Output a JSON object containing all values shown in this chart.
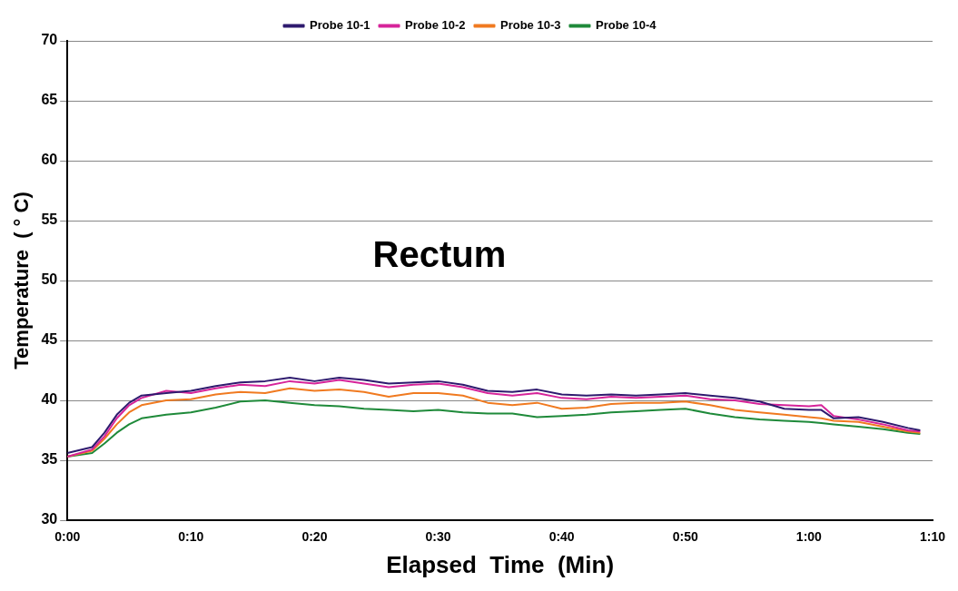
{
  "chart_data": {
    "type": "line",
    "title": null,
    "xlabel": "Elapsed  Time  (Min)",
    "ylabel": "Temperature  ( ° C)",
    "annotations": [
      "Rectum"
    ],
    "x": [
      0,
      2,
      3,
      4,
      5,
      6,
      8,
      10,
      12,
      14,
      16,
      18,
      20,
      22,
      24,
      26,
      28,
      30,
      32,
      34,
      36,
      38,
      40,
      42,
      44,
      46,
      48,
      50,
      52,
      54,
      56,
      58,
      60,
      61,
      62,
      64,
      66,
      68,
      69
    ],
    "series": [
      {
        "name": "Probe 10-1",
        "color": "#2e1a6e",
        "values": [
          35.6,
          36.1,
          37.3,
          38.8,
          39.8,
          40.4,
          40.6,
          40.8,
          41.2,
          41.5,
          41.6,
          41.9,
          41.6,
          41.9,
          41.7,
          41.4,
          41.5,
          41.6,
          41.3,
          40.8,
          40.7,
          40.9,
          40.5,
          40.4,
          40.5,
          40.4,
          40.5,
          40.6,
          40.4,
          40.2,
          39.9,
          39.3,
          39.2,
          39.2,
          38.5,
          38.6,
          38.2,
          37.7,
          37.5
        ]
      },
      {
        "name": "Probe 10-2",
        "color": "#d6249a",
        "values": [
          35.3,
          35.9,
          37.0,
          38.5,
          39.6,
          40.2,
          40.8,
          40.6,
          41.0,
          41.3,
          41.2,
          41.6,
          41.4,
          41.7,
          41.4,
          41.1,
          41.3,
          41.4,
          41.1,
          40.6,
          40.4,
          40.6,
          40.2,
          40.1,
          40.3,
          40.2,
          40.3,
          40.4,
          40.1,
          40.0,
          39.7,
          39.6,
          39.5,
          39.6,
          38.7,
          38.4,
          38.0,
          37.5,
          37.4
        ]
      },
      {
        "name": "Probe 10-3",
        "color": "#f07a20",
        "values": [
          35.3,
          35.8,
          36.8,
          38.0,
          39.0,
          39.6,
          40.0,
          40.1,
          40.5,
          40.7,
          40.6,
          41.0,
          40.8,
          40.9,
          40.7,
          40.3,
          40.6,
          40.6,
          40.4,
          39.8,
          39.6,
          39.8,
          39.3,
          39.4,
          39.7,
          39.8,
          39.8,
          39.9,
          39.6,
          39.2,
          39.0,
          38.8,
          38.6,
          38.5,
          38.3,
          38.2,
          37.8,
          37.4,
          37.3
        ]
      },
      {
        "name": "Probe 10-4",
        "color": "#1f8a3a",
        "values": [
          35.3,
          35.6,
          36.4,
          37.3,
          38.0,
          38.5,
          38.8,
          39.0,
          39.4,
          39.9,
          40.0,
          39.8,
          39.6,
          39.5,
          39.3,
          39.2,
          39.1,
          39.2,
          39.0,
          38.9,
          38.9,
          38.6,
          38.7,
          38.8,
          39.0,
          39.1,
          39.2,
          39.3,
          38.9,
          38.6,
          38.4,
          38.3,
          38.2,
          38.1,
          38.0,
          37.8,
          37.6,
          37.3,
          37.2
        ]
      }
    ],
    "xlim": [
      0,
      70
    ],
    "xticks": [
      {
        "value": 0,
        "label": "0:00"
      },
      {
        "value": 10,
        "label": "0:10"
      },
      {
        "value": 20,
        "label": "0:20"
      },
      {
        "value": 30,
        "label": "0:30"
      },
      {
        "value": 40,
        "label": "0:40"
      },
      {
        "value": 50,
        "label": "0:50"
      },
      {
        "value": 60,
        "label": "1:00"
      },
      {
        "value": 70,
        "label": "1:10"
      }
    ],
    "ylim": [
      30,
      70
    ],
    "yticks": [
      30,
      35,
      40,
      45,
      50,
      55,
      60,
      65,
      70
    ],
    "grid": "y",
    "legend": "top",
    "marker": "none",
    "line_style": "solid"
  }
}
